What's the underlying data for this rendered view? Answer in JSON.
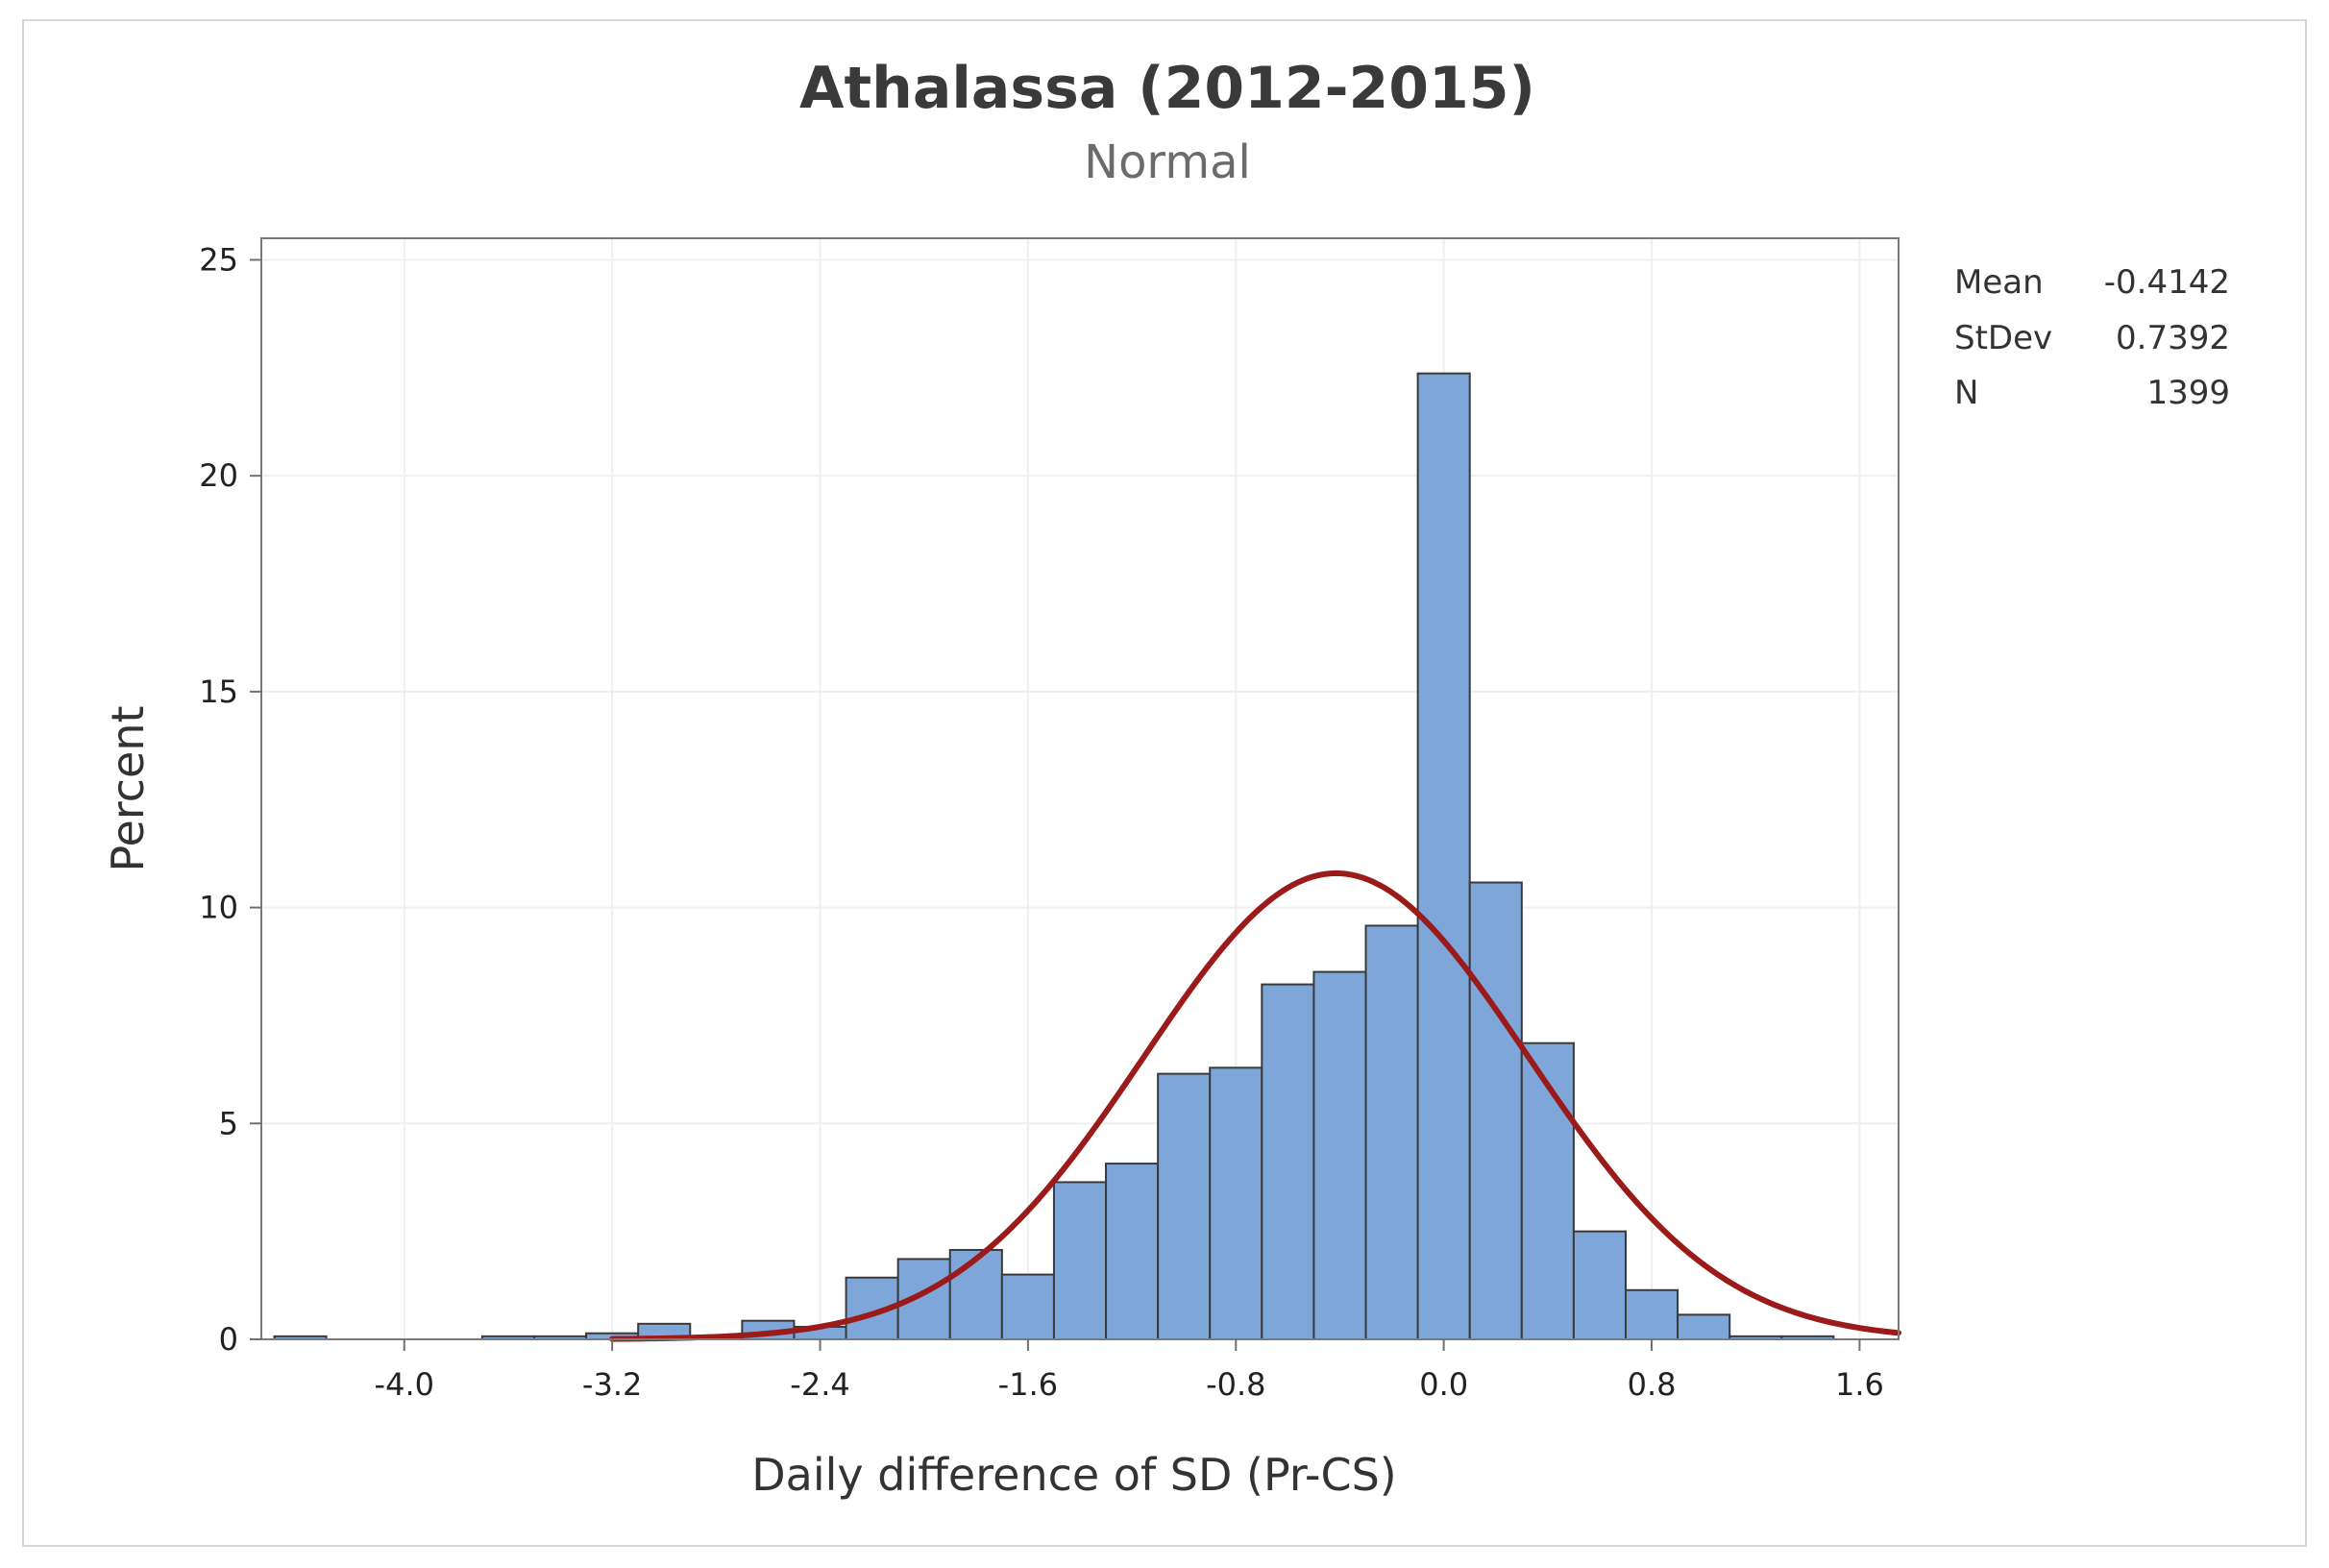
{
  "chart_data": {
    "type": "histogram",
    "title": "Athalassa (2012-2015)",
    "subtitle": "Normal",
    "xlabel": "Daily difference of SD (Pr-CS)",
    "ylabel": "Percent",
    "xlim": [
      -4.55,
      1.75
    ],
    "ylim": [
      0,
      25.5
    ],
    "x_ticks": [
      -4.0,
      -3.2,
      -2.4,
      -1.6,
      -0.8,
      0.0,
      0.8,
      1.6
    ],
    "x_tick_labels": [
      "-4.0",
      "-3.2",
      "-2.4",
      "-1.6",
      "-0.8",
      "0.0",
      "0.8",
      "1.6"
    ],
    "y_ticks": [
      0,
      5,
      10,
      15,
      20,
      25
    ],
    "y_tick_labels": [
      "0",
      "5",
      "10",
      "15",
      "20",
      "25"
    ],
    "bin_width": 0.2,
    "bin_starts": [
      -4.5,
      -4.3,
      -4.1,
      -3.9,
      -3.7,
      -3.5,
      -3.3,
      -3.1,
      -2.9,
      -2.7,
      -2.5,
      -2.3,
      -2.1,
      -1.9,
      -1.7,
      -1.5,
      -1.3,
      -1.1,
      -0.9,
      -0.7,
      -0.5,
      -0.3,
      -0.1,
      0.1,
      0.3,
      0.5,
      0.7,
      0.9,
      1.1,
      1.3
    ],
    "values": [
      0.07,
      0,
      0,
      0,
      0.07,
      0.07,
      0.14,
      0.36,
      0.07,
      0.43,
      0.29,
      1.43,
      1.86,
      2.07,
      1.5,
      3.64,
      4.07,
      6.15,
      6.29,
      8.22,
      8.51,
      9.58,
      22.37,
      10.58,
      6.86,
      2.5,
      1.14,
      0.57,
      0.07,
      0.07
    ],
    "fit": {
      "distribution": "Normal",
      "mean": -0.4142,
      "stdev": 0.7392,
      "n": 1399
    },
    "stats": [
      {
        "label": "Mean",
        "value": "-0.4142"
      },
      {
        "label": "StDev",
        "value": "0.7392"
      },
      {
        "label": "N",
        "value": "1399"
      }
    ],
    "grid": true,
    "colors": {
      "bar_fill": "#7ea6d9",
      "bar_edge": "#3a3a3a",
      "fit_line": "#9b1b1b"
    }
  }
}
